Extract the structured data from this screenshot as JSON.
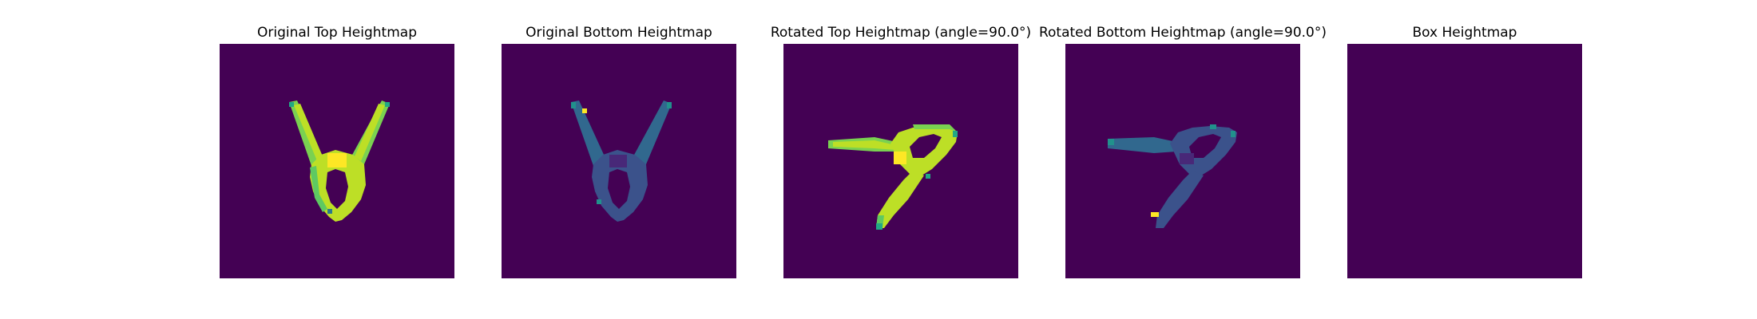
{
  "figure": {
    "background": "#ffffff",
    "colormap": "viridis",
    "panel_background": "#440154"
  },
  "chart_data": [
    {
      "type": "heatmap",
      "title": "Original Top Heightmap",
      "axes": "off",
      "shape": "Y-shaped object",
      "value_range": [
        0,
        1
      ],
      "dominant_values": {
        "background": 0.0,
        "body": 0.8,
        "center_peak": 1.0,
        "edges": 0.6
      }
    },
    {
      "type": "heatmap",
      "title": "Original Bottom Heightmap",
      "axes": "off",
      "shape": "Y-shaped object",
      "value_range": [
        0,
        1
      ],
      "dominant_values": {
        "background": 0.0,
        "body": 0.3,
        "center": 0.2,
        "edges": 0.5,
        "hotspot": 0.95
      }
    },
    {
      "type": "heatmap",
      "title": "Rotated Top Heightmap (angle=90.0°)",
      "axes": "off",
      "shape": "rotated Y-shaped object",
      "value_range": [
        0,
        1
      ],
      "dominant_values": {
        "background": 0.0,
        "body": 0.8,
        "center_peak": 1.0,
        "edges": 0.6
      }
    },
    {
      "type": "heatmap",
      "title": "Rotated Bottom Heightmap (angle=90.0°)",
      "axes": "off",
      "shape": "rotated Y-shaped object",
      "value_range": [
        0,
        1
      ],
      "dominant_values": {
        "background": 0.0,
        "body": 0.3,
        "center": 0.2,
        "edges": 0.5,
        "hotspot": 0.95
      }
    },
    {
      "type": "heatmap",
      "title": "Box Heightmap",
      "axes": "off",
      "shape": "empty",
      "value_range": [
        0,
        1
      ],
      "dominant_values": {
        "background": 0.0
      }
    }
  ]
}
